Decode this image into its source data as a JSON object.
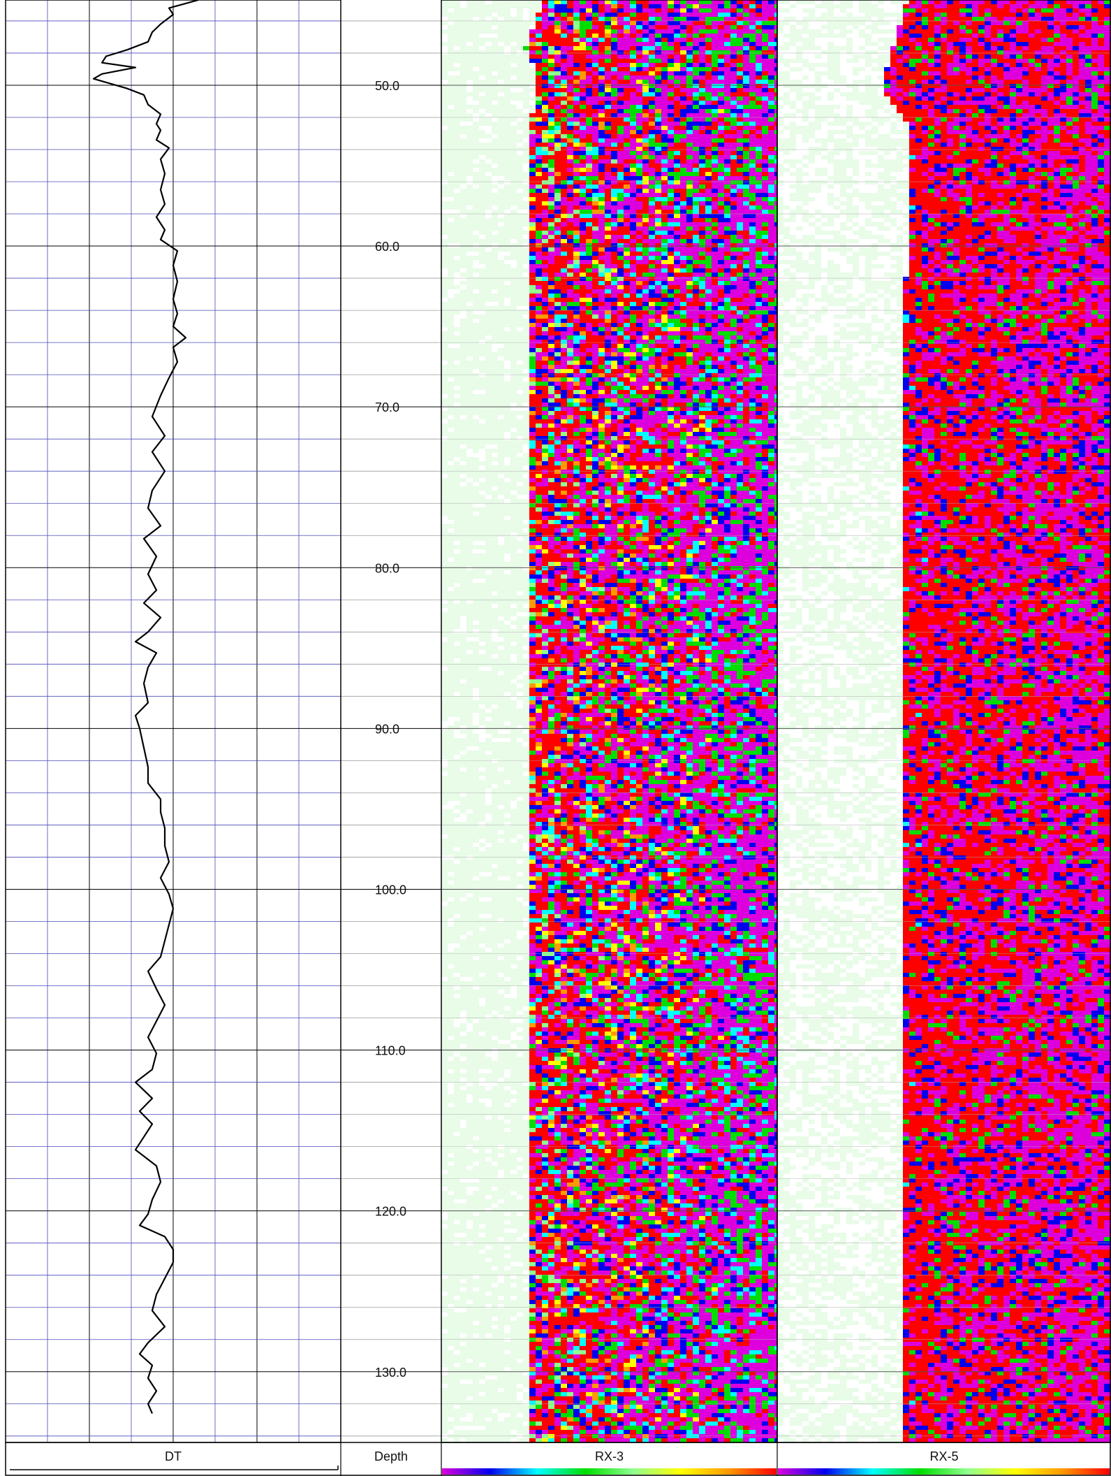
{
  "tracks": {
    "dt_label": "DT",
    "depth_label": "Depth",
    "rx3_label": "RX-3",
    "rx5_label": "RX-5"
  },
  "colors": {
    "background": "#ffffff",
    "major_grid": "#000000",
    "minor_grid": "#4a4ab8",
    "curve": "#000000",
    "rx_palette": [
      "#ffffff",
      "#e8fce8",
      "#90ff90",
      "#00dd00",
      "#00ffff",
      "#ffff00",
      "#ff9900",
      "#0000ee",
      "#dd00dd",
      "#ff0000"
    ]
  },
  "chart_data": {
    "type": "well-log",
    "depth_axis": {
      "range": [
        44.7,
        134.4
      ],
      "major_step": 10,
      "minor_step": 2,
      "labels": [
        "50.0",
        "60.0",
        "70.0",
        "80.0",
        "90.0",
        "100.0",
        "110.0",
        "120.0",
        "130.0"
      ]
    },
    "dt_curve": {
      "name": "DT",
      "x_range": [
        0,
        8
      ],
      "grid_lines": 8,
      "points": [
        [
          44.7,
          4.6
        ],
        [
          45.2,
          3.9
        ],
        [
          45.6,
          4.0
        ],
        [
          46.2,
          3.7
        ],
        [
          46.7,
          3.5
        ],
        [
          47.3,
          3.4
        ],
        [
          47.8,
          2.9
        ],
        [
          48.2,
          2.4
        ],
        [
          48.6,
          2.3
        ],
        [
          48.9,
          3.1
        ],
        [
          49.3,
          2.3
        ],
        [
          49.6,
          2.1
        ],
        [
          50.2,
          2.9
        ],
        [
          50.6,
          3.3
        ],
        [
          51.2,
          3.4
        ],
        [
          51.8,
          3.7
        ],
        [
          52.4,
          3.6
        ],
        [
          52.8,
          3.7
        ],
        [
          53.4,
          3.6
        ],
        [
          53.9,
          3.9
        ],
        [
          54.6,
          3.7
        ],
        [
          55.5,
          3.8
        ],
        [
          56.5,
          3.7
        ],
        [
          57.4,
          3.8
        ],
        [
          58.2,
          3.6
        ],
        [
          59.0,
          3.8
        ],
        [
          59.6,
          3.7
        ],
        [
          60.3,
          4.1
        ],
        [
          61.2,
          4.0
        ],
        [
          62.2,
          4.1
        ],
        [
          63.3,
          4.0
        ],
        [
          64.2,
          4.1
        ],
        [
          65.0,
          4.0
        ],
        [
          65.7,
          4.3
        ],
        [
          66.3,
          4.0
        ],
        [
          67.2,
          4.1
        ],
        [
          68.2,
          3.9
        ],
        [
          69.3,
          3.7
        ],
        [
          70.6,
          3.5
        ],
        [
          71.8,
          3.8
        ],
        [
          72.8,
          3.5
        ],
        [
          74.0,
          3.8
        ],
        [
          75.2,
          3.5
        ],
        [
          76.3,
          3.4
        ],
        [
          77.4,
          3.7
        ],
        [
          78.2,
          3.3
        ],
        [
          79.3,
          3.6
        ],
        [
          80.4,
          3.4
        ],
        [
          81.4,
          3.6
        ],
        [
          82.2,
          3.3
        ],
        [
          83.1,
          3.7
        ],
        [
          84.0,
          3.4
        ],
        [
          84.6,
          3.1
        ],
        [
          85.3,
          3.6
        ],
        [
          86.2,
          3.4
        ],
        [
          87.2,
          3.3
        ],
        [
          88.4,
          3.4
        ],
        [
          89.2,
          3.1
        ],
        [
          90.0,
          3.2
        ],
        [
          91.2,
          3.3
        ],
        [
          92.4,
          3.4
        ],
        [
          93.4,
          3.4
        ],
        [
          94.4,
          3.7
        ],
        [
          95.2,
          3.7
        ],
        [
          96.2,
          3.8
        ],
        [
          97.3,
          3.8
        ],
        [
          98.3,
          3.9
        ],
        [
          99.3,
          3.7
        ],
        [
          100.3,
          3.9
        ],
        [
          101.2,
          4.0
        ],
        [
          102.2,
          3.9
        ],
        [
          103.2,
          3.8
        ],
        [
          104.2,
          3.7
        ],
        [
          105.1,
          3.4
        ],
        [
          106.2,
          3.6
        ],
        [
          107.2,
          3.8
        ],
        [
          108.2,
          3.6
        ],
        [
          109.2,
          3.4
        ],
        [
          110.2,
          3.6
        ],
        [
          111.2,
          3.5
        ],
        [
          112.0,
          3.1
        ],
        [
          113.0,
          3.5
        ],
        [
          113.8,
          3.2
        ],
        [
          114.6,
          3.5
        ],
        [
          115.4,
          3.3
        ],
        [
          116.2,
          3.1
        ],
        [
          117.2,
          3.6
        ],
        [
          118.2,
          3.7
        ],
        [
          119.3,
          3.5
        ],
        [
          120.2,
          3.4
        ],
        [
          120.9,
          3.2
        ],
        [
          121.6,
          3.8
        ],
        [
          122.4,
          4.0
        ],
        [
          123.2,
          4.0
        ],
        [
          124.2,
          3.8
        ],
        [
          125.2,
          3.6
        ],
        [
          126.2,
          3.5
        ],
        [
          127.2,
          3.8
        ],
        [
          128.2,
          3.4
        ],
        [
          128.9,
          3.2
        ],
        [
          129.6,
          3.5
        ],
        [
          130.4,
          3.4
        ],
        [
          131.2,
          3.6
        ],
        [
          132.0,
          3.4
        ],
        [
          132.6,
          3.5
        ]
      ]
    },
    "rx3_image": {
      "name": "RX-3",
      "color_scale": "white-green-cyan-yellow-orange-blue-magenta-red",
      "high_value_edge": [
        [
          44.7,
          0.29
        ],
        [
          47.5,
          0.24
        ],
        [
          49.0,
          0.27
        ],
        [
          50.6,
          0.27
        ],
        [
          52.0,
          0.26
        ],
        [
          60.0,
          0.26
        ],
        [
          80.0,
          0.25
        ],
        [
          100.0,
          0.25
        ],
        [
          117.0,
          0.25
        ],
        [
          125.0,
          0.26
        ],
        [
          134.4,
          0.26
        ]
      ]
    },
    "rx5_image": {
      "name": "RX-5",
      "color_scale": "white-green-cyan-yellow-orange-blue-magenta-red",
      "high_value_edge": [
        [
          44.7,
          0.38
        ],
        [
          48.0,
          0.33
        ],
        [
          50.0,
          0.3
        ],
        [
          51.5,
          0.35
        ],
        [
          52.5,
          0.39
        ],
        [
          60.0,
          0.38
        ],
        [
          70.0,
          0.36
        ],
        [
          80.0,
          0.36
        ],
        [
          100.0,
          0.37
        ],
        [
          110.0,
          0.36
        ],
        [
          120.0,
          0.36
        ],
        [
          130.0,
          0.36
        ],
        [
          132.5,
          0.37
        ],
        [
          134.4,
          0.37
        ]
      ]
    }
  }
}
